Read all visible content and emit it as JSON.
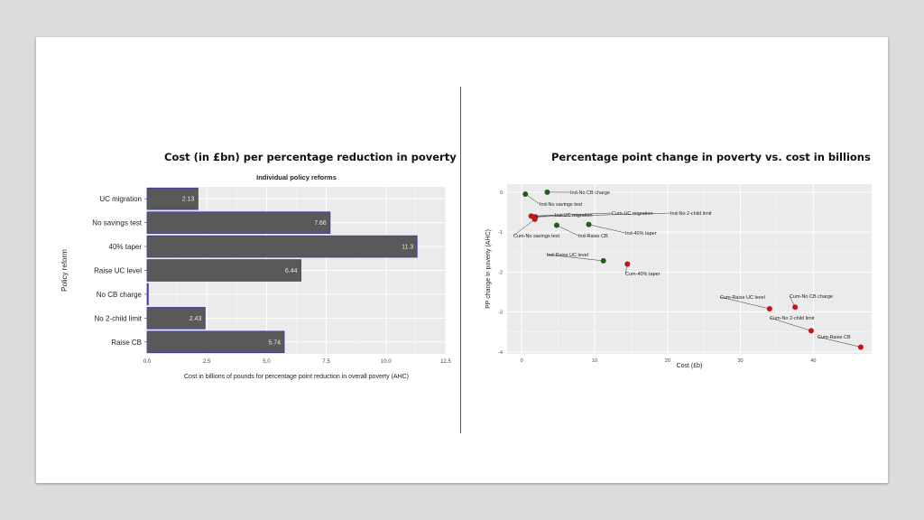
{
  "slide": {
    "left_title": "Cost (in £bn) per percentage reduction in poverty",
    "right_title": "Percentage point change in poverty vs. cost in billions"
  },
  "chart_data": [
    {
      "type": "bar",
      "orientation": "horizontal",
      "subtitle": "Individual policy reforms",
      "xlabel": "Cost in billions of pounds for percentage point reduction in overall poverty (AHC)",
      "ylabel": "Policy reform",
      "categories": [
        "UC migration",
        "No savings test",
        "40% taper",
        "Raise UC level",
        "No CB charge",
        "No 2-child limit",
        "Raise CB"
      ],
      "values": [
        2.13,
        7.66,
        11.3,
        6.44,
        0.05,
        2.43,
        5.74
      ],
      "labels": [
        "2.13",
        "7.66",
        "11.3",
        "6.44",
        "",
        "2.43",
        "5.74"
      ],
      "xlim": [
        0,
        12.5
      ],
      "xticks": [
        "0.0",
        "2.5",
        "5.0",
        "7.5",
        "10.0",
        "12.5"
      ],
      "xtick_values": [
        0,
        2.5,
        5,
        7.5,
        10,
        12.5
      ],
      "bar_color": "#595959",
      "bar_border": "#3a3aa0",
      "grid": true
    },
    {
      "type": "scatter",
      "xlabel": "Cost (£b)",
      "ylabel": "PP change in poverty (AHC)",
      "xlim": [
        -2,
        48
      ],
      "ylim": [
        -4.05,
        0.2
      ],
      "xticks": [
        "0",
        "10",
        "20",
        "30",
        "40"
      ],
      "xtick_values": [
        0,
        10,
        20,
        30,
        40
      ],
      "yticks": [
        "0",
        "-1",
        "-2",
        "-3",
        "-4"
      ],
      "ytick_values": [
        0,
        -1,
        -2,
        -3,
        -4
      ],
      "grid": true,
      "series_colors": {
        "Ind": "#1e5e1e",
        "Cum": "#c41414"
      },
      "points": [
        {
          "label": "Ind-No CB charge",
          "group": "Ind",
          "x": 3.5,
          "y": 0.0
        },
        {
          "label": "Ind-No savings test",
          "group": "Ind",
          "x": 0.5,
          "y": -0.05
        },
        {
          "label": "Ind-UC migration",
          "group": "Ind",
          "x": 1.9,
          "y": -0.62
        },
        {
          "label": "Cum-UC migration",
          "group": "Cum",
          "x": 1.3,
          "y": -0.6
        },
        {
          "label": "Ind-No 2-child limit",
          "group": "Cum",
          "x": 1.6,
          "y": -0.62
        },
        {
          "label": "Cum-No savings test",
          "group": "Cum",
          "x": 1.8,
          "y": -0.68
        },
        {
          "label": "Ind-Raise CB",
          "group": "Ind",
          "x": 4.8,
          "y": -0.83
        },
        {
          "label": "Ind-40% taper",
          "group": "Ind",
          "x": 9.2,
          "y": -0.81
        },
        {
          "label": "Ind-Raise UC level",
          "group": "Ind",
          "x": 11.2,
          "y": -1.72
        },
        {
          "label": "Cum-40% taper",
          "group": "Cum",
          "x": 14.5,
          "y": -1.8
        },
        {
          "label": "Cum-Raise UC level",
          "group": "Cum",
          "x": 34.0,
          "y": -2.92
        },
        {
          "label": "Cum-No CB charge",
          "group": "Cum",
          "x": 37.5,
          "y": -2.88
        },
        {
          "label": "Cum-No 2-child limit",
          "group": "Cum",
          "x": 39.7,
          "y": -3.47
        },
        {
          "label": "Cum-Raise CB",
          "group": "Cum",
          "x": 46.5,
          "y": -3.88
        }
      ]
    }
  ]
}
